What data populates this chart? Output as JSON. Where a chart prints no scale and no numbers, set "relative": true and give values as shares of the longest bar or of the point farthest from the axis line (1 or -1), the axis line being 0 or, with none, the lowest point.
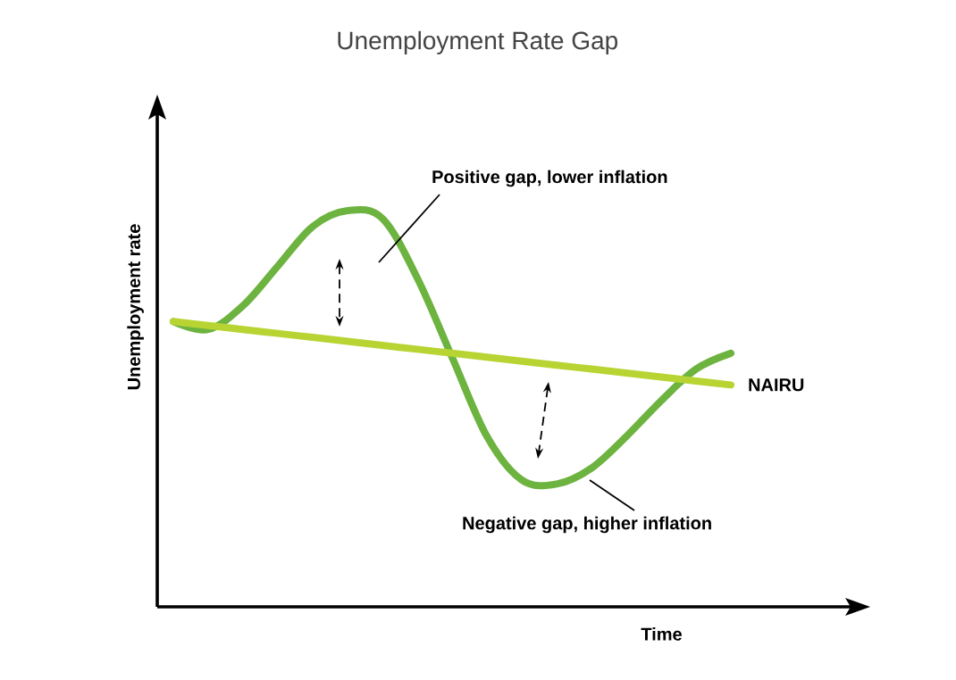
{
  "chart_data": {
    "type": "line",
    "title": "Unemployment Rate Gap",
    "xlabel": "Time",
    "ylabel": "Unemployment rate",
    "relative": true,
    "categories": [
      null,
      null,
      null,
      null,
      null,
      null,
      null,
      null,
      null,
      null,
      null,
      null,
      null,
      null,
      null,
      null,
      null
    ],
    "series": [
      {
        "color": "#6cb33f",
        "values": [
          0.72,
          0.7,
          0.76,
          0.86,
          0.96,
          1,
          0.98,
          0.83,
          0.63,
          0.43,
          0.32,
          0.31,
          0.35,
          0.43,
          0.52,
          0.6,
          0.64
        ]
      },
      {
        "name": "NAIRU",
        "color": "#b7d433",
        "values": [
          0.72,
          0.71,
          0.7,
          0.69,
          0.68,
          0.67,
          0.66,
          0.65,
          0.64,
          0.63,
          0.62,
          0.61,
          0.6,
          0.59,
          0.58,
          0.57,
          0.56
        ]
      }
    ],
    "annotations": [
      "Positive gap, lower inflation",
      "Negative gap, higher inflation"
    ]
  }
}
